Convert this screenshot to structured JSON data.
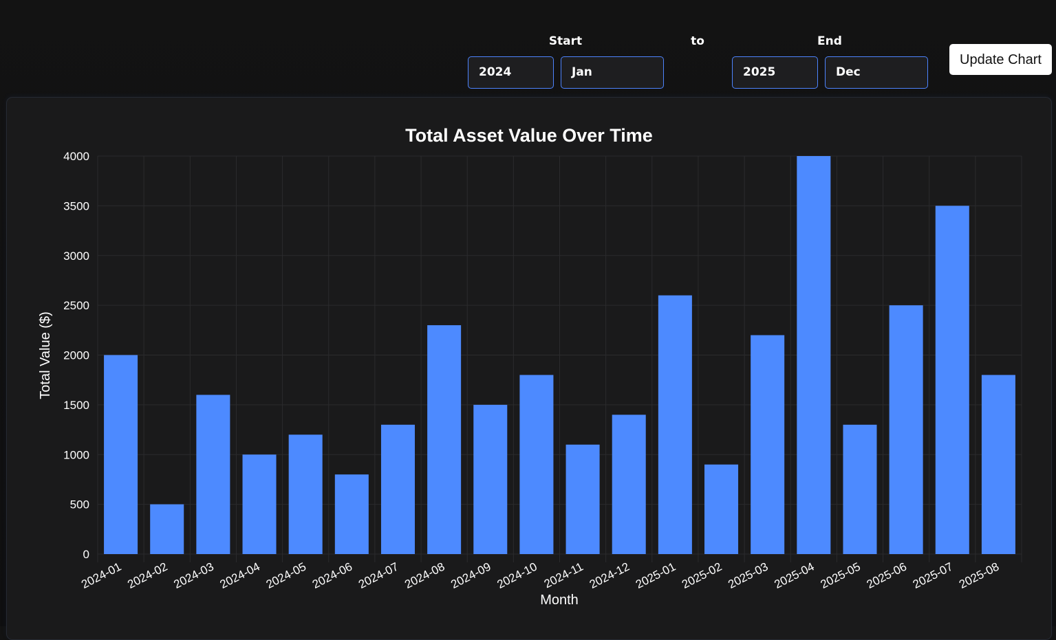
{
  "controls": {
    "start_label": "Start",
    "to_label": "to",
    "end_label": "End",
    "start_year": "2024",
    "start_month": "Jan",
    "end_year": "2025",
    "end_month": "Dec",
    "update_button": "Update Chart"
  },
  "colors": {
    "bar": "#4d8aff",
    "input_border": "#4d84ff",
    "grid": "#2b2b2d",
    "card_background": "#1a1a1b",
    "page_background": "#121212"
  },
  "chart_data": {
    "type": "bar",
    "title": "Total Asset Value Over Time",
    "xlabel": "Month",
    "ylabel": "Total Value ($)",
    "categories": [
      "2024-01",
      "2024-02",
      "2024-03",
      "2024-04",
      "2024-05",
      "2024-06",
      "2024-07",
      "2024-08",
      "2024-09",
      "2024-10",
      "2024-11",
      "2024-12",
      "2025-01",
      "2025-02",
      "2025-03",
      "2025-04",
      "2025-05",
      "2025-06",
      "2025-07",
      "2025-08"
    ],
    "values": [
      2000,
      500,
      1600,
      1000,
      1200,
      800,
      1300,
      2300,
      1500,
      1800,
      1100,
      1400,
      2600,
      900,
      2200,
      4000,
      1300,
      2500,
      3500,
      1800
    ],
    "ylim": [
      0,
      4000
    ],
    "yticks": [
      0,
      500,
      1000,
      1500,
      2000,
      2500,
      3000,
      3500,
      4000
    ],
    "grid": true,
    "legend": false
  }
}
